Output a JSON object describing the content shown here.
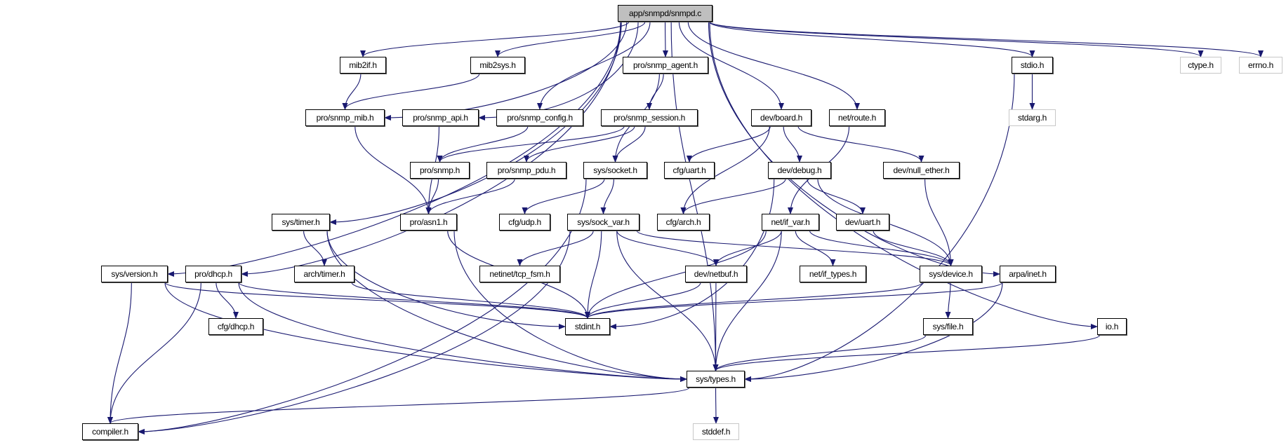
{
  "colors": {
    "edge": "#191970",
    "root_fill": "#bfbfbf",
    "external_border": "#c8c8c8"
  },
  "nodes": [
    {
      "id": "app",
      "label": "app/snmpd/snmpd.c",
      "kind": "root"
    },
    {
      "id": "mib2if",
      "label": "mib2if.h"
    },
    {
      "id": "mib2sys",
      "label": "mib2sys.h"
    },
    {
      "id": "snmp_agent",
      "label": "pro/snmp_agent.h"
    },
    {
      "id": "stdio",
      "label": "stdio.h"
    },
    {
      "id": "ctype",
      "label": "ctype.h",
      "kind": "ext"
    },
    {
      "id": "errno",
      "label": "errno.h",
      "kind": "ext"
    },
    {
      "id": "snmp_mib",
      "label": "pro/snmp_mib.h"
    },
    {
      "id": "snmp_api",
      "label": "pro/snmp_api.h"
    },
    {
      "id": "snmp_config",
      "label": "pro/snmp_config.h"
    },
    {
      "id": "snmp_session",
      "label": "pro/snmp_session.h"
    },
    {
      "id": "board",
      "label": "dev/board.h"
    },
    {
      "id": "route",
      "label": "net/route.h"
    },
    {
      "id": "stdarg",
      "label": "stdarg.h",
      "kind": "ext"
    },
    {
      "id": "snmp",
      "label": "pro/snmp.h"
    },
    {
      "id": "snmp_pdu",
      "label": "pro/snmp_pdu.h"
    },
    {
      "id": "socket",
      "label": "sys/socket.h"
    },
    {
      "id": "cfg_uart",
      "label": "cfg/uart.h"
    },
    {
      "id": "debug",
      "label": "dev/debug.h"
    },
    {
      "id": "null_ether",
      "label": "dev/null_ether.h"
    },
    {
      "id": "timer",
      "label": "sys/timer.h"
    },
    {
      "id": "asn1",
      "label": "pro/asn1.h"
    },
    {
      "id": "cfg_udp",
      "label": "cfg/udp.h"
    },
    {
      "id": "sock_var",
      "label": "sys/sock_var.h"
    },
    {
      "id": "cfg_arch",
      "label": "cfg/arch.h"
    },
    {
      "id": "if_var",
      "label": "net/if_var.h"
    },
    {
      "id": "dev_uart",
      "label": "dev/uart.h"
    },
    {
      "id": "version",
      "label": "sys/version.h"
    },
    {
      "id": "dhcp",
      "label": "pro/dhcp.h"
    },
    {
      "id": "arch_timer",
      "label": "arch/timer.h"
    },
    {
      "id": "tcp_fsm",
      "label": "netinet/tcp_fsm.h"
    },
    {
      "id": "netbuf",
      "label": "dev/netbuf.h"
    },
    {
      "id": "if_types",
      "label": "net/if_types.h"
    },
    {
      "id": "device",
      "label": "sys/device.h"
    },
    {
      "id": "inet",
      "label": "arpa/inet.h"
    },
    {
      "id": "cfg_dhcp",
      "label": "cfg/dhcp.h"
    },
    {
      "id": "stdint",
      "label": "stdint.h"
    },
    {
      "id": "file",
      "label": "sys/file.h"
    },
    {
      "id": "io",
      "label": "io.h"
    },
    {
      "id": "types",
      "label": "sys/types.h"
    },
    {
      "id": "compiler",
      "label": "compiler.h"
    },
    {
      "id": "stddef",
      "label": "stddef.h",
      "kind": "ext"
    }
  ],
  "edges": [
    [
      "app",
      "mib2if"
    ],
    [
      "app",
      "mib2sys"
    ],
    [
      "app",
      "snmp_mib"
    ],
    [
      "app",
      "snmp_api"
    ],
    [
      "app",
      "snmp_config"
    ],
    [
      "app",
      "snmp_agent"
    ],
    [
      "app",
      "board"
    ],
    [
      "app",
      "route"
    ],
    [
      "app",
      "stdio"
    ],
    [
      "app",
      "ctype"
    ],
    [
      "app",
      "errno"
    ],
    [
      "app",
      "version"
    ],
    [
      "app",
      "dhcp"
    ],
    [
      "app",
      "timer"
    ],
    [
      "app",
      "inet"
    ],
    [
      "app",
      "io"
    ],
    [
      "app",
      "types"
    ],
    [
      "mib2if",
      "snmp_mib"
    ],
    [
      "mib2sys",
      "snmp_mib"
    ],
    [
      "snmp_mib",
      "asn1"
    ],
    [
      "snmp_api",
      "asn1"
    ],
    [
      "snmp_config",
      "snmp"
    ],
    [
      "snmp_agent",
      "snmp_session"
    ],
    [
      "snmp_agent",
      "socket"
    ],
    [
      "snmp_session",
      "snmp"
    ],
    [
      "snmp_session",
      "snmp_pdu"
    ],
    [
      "snmp_session",
      "socket"
    ],
    [
      "snmp",
      "asn1"
    ],
    [
      "snmp_pdu",
      "asn1"
    ],
    [
      "socket",
      "compiler"
    ],
    [
      "socket",
      "cfg_udp"
    ],
    [
      "socket",
      "sock_var"
    ],
    [
      "board",
      "cfg_uart"
    ],
    [
      "board",
      "cfg_arch"
    ],
    [
      "board",
      "debug"
    ],
    [
      "board",
      "null_ether"
    ],
    [
      "route",
      "if_var"
    ],
    [
      "stdio",
      "stdarg"
    ],
    [
      "stdio",
      "types"
    ],
    [
      "debug",
      "cfg_arch"
    ],
    [
      "debug",
      "stdint"
    ],
    [
      "debug",
      "dev_uart"
    ],
    [
      "debug",
      "device"
    ],
    [
      "null_ether",
      "device"
    ],
    [
      "timer",
      "arch_timer"
    ],
    [
      "timer",
      "stdint"
    ],
    [
      "timer",
      "types"
    ],
    [
      "asn1",
      "stdint"
    ],
    [
      "asn1",
      "types"
    ],
    [
      "sock_var",
      "compiler"
    ],
    [
      "sock_var",
      "tcp_fsm"
    ],
    [
      "sock_var",
      "stdint"
    ],
    [
      "sock_var",
      "types"
    ],
    [
      "sock_var",
      "netbuf"
    ],
    [
      "sock_var",
      "device"
    ],
    [
      "if_var",
      "netbuf"
    ],
    [
      "if_var",
      "stdint"
    ],
    [
      "if_var",
      "if_types"
    ],
    [
      "if_var",
      "device"
    ],
    [
      "if_var",
      "types"
    ],
    [
      "dev_uart",
      "device"
    ],
    [
      "version",
      "compiler"
    ],
    [
      "version",
      "stdint"
    ],
    [
      "version",
      "types"
    ],
    [
      "dhcp",
      "cfg_dhcp"
    ],
    [
      "dhcp",
      "compiler"
    ],
    [
      "dhcp",
      "stdint"
    ],
    [
      "dhcp",
      "types"
    ],
    [
      "arch_timer",
      "stdint"
    ],
    [
      "netbuf",
      "stdint"
    ],
    [
      "netbuf",
      "types"
    ],
    [
      "device",
      "stdint"
    ],
    [
      "device",
      "file"
    ],
    [
      "inet",
      "stdint"
    ],
    [
      "inet",
      "types"
    ],
    [
      "file",
      "types"
    ],
    [
      "io",
      "types"
    ],
    [
      "types",
      "compiler"
    ],
    [
      "types",
      "stddef"
    ]
  ]
}
